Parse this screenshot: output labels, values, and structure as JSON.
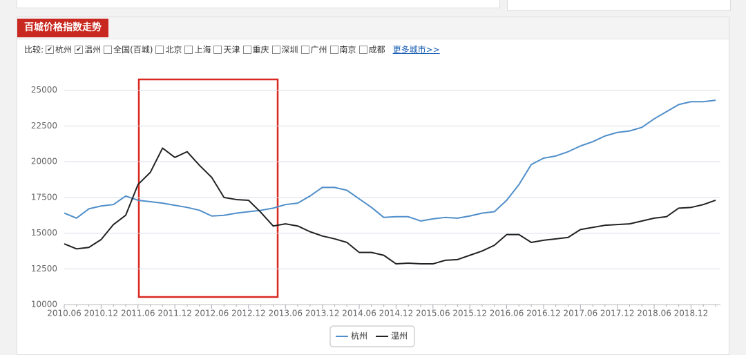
{
  "panel": {
    "title": "百城价格指数走势",
    "compare_label": "比较:",
    "options": [
      {
        "label": "杭州",
        "checked": true
      },
      {
        "label": "温州",
        "checked": true
      },
      {
        "label": "全国(百城)",
        "checked": false
      },
      {
        "label": "北京",
        "checked": false
      },
      {
        "label": "上海",
        "checked": false
      },
      {
        "label": "天津",
        "checked": false
      },
      {
        "label": "重庆",
        "checked": false
      },
      {
        "label": "深圳",
        "checked": false
      },
      {
        "label": "广州",
        "checked": false
      },
      {
        "label": "南京",
        "checked": false
      },
      {
        "label": "成都",
        "checked": false
      }
    ],
    "more_link": "更多城市>>"
  },
  "chart_data": {
    "type": "line",
    "categories": [
      "2010.06",
      null,
      null,
      "2010.12",
      null,
      null,
      "2011.06",
      null,
      null,
      "2011.12",
      null,
      null,
      "2012.06",
      null,
      null,
      "2012.12",
      null,
      null,
      "2013.06",
      null,
      null,
      "2013.12",
      null,
      null,
      "2014.06",
      null,
      null,
      "2014.12",
      null,
      null,
      "2015.06",
      null,
      null,
      "2015.12",
      null,
      null,
      "2016.06",
      null,
      null,
      "2016.12",
      null,
      null,
      "2017.06",
      null,
      null,
      "2017.12",
      null,
      null,
      "2018.06",
      null,
      null,
      "2018.12",
      null,
      null
    ],
    "series": [
      {
        "name": "杭州",
        "color": "#4f8ec9",
        "values": [
          16400,
          16050,
          16700,
          16900,
          17000,
          17600,
          17300,
          17200,
          17100,
          16950,
          16800,
          16600,
          16200,
          16250,
          16400,
          16500,
          16600,
          16750,
          17000,
          17100,
          17600,
          18200,
          18200,
          18000,
          17400,
          16800,
          16100,
          16150,
          16150,
          15850,
          16000,
          16100,
          16050,
          16200,
          16400,
          16500,
          17300,
          18400,
          19800,
          20250,
          20400,
          20700,
          21100,
          21400,
          21800,
          22050,
          22150,
          22400,
          23000,
          23500,
          24000,
          24200,
          24200,
          24300
        ]
      },
      {
        "name": "温州",
        "color": "#222222",
        "values": [
          14250,
          13900,
          14000,
          14550,
          15600,
          16250,
          18400,
          19250,
          20950,
          20300,
          20700,
          19750,
          18900,
          17500,
          17350,
          17300,
          16450,
          15500,
          15650,
          15500,
          15100,
          14800,
          14600,
          14350,
          13650,
          13650,
          13450,
          12850,
          12900,
          12850,
          12850,
          13100,
          13150,
          13450,
          13750,
          14150,
          14900,
          14900,
          14350,
          14500,
          14600,
          14700,
          15250,
          15400,
          15550,
          15600,
          15650,
          15850,
          16050,
          16150,
          16750,
          16800,
          17000,
          17300
        ]
      }
    ],
    "ylim": [
      10000,
      26000
    ],
    "yticks": [
      10000,
      12500,
      15000,
      17500,
      20000,
      22500,
      25000
    ],
    "grid": true,
    "legend": "bottom"
  }
}
